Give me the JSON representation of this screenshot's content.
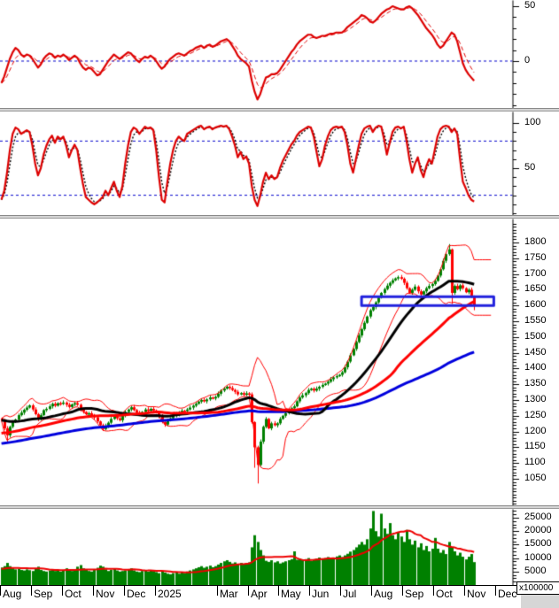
{
  "colors": {
    "up_candle": "#008000",
    "down_candle": "#ff0000",
    "bollinger_band": "#ff0000",
    "sma_fast": "#000000",
    "sma_mid": "#ff0000",
    "sma_slow": "#0000dd",
    "oscillator_line": "#dd0000",
    "oscillator_signal": "#dd0000",
    "stochastic_line": "#dd0000",
    "stochastic_signal": "#000000",
    "threshold_line": "#0000cc",
    "annotation_box": "#2222dd",
    "volume_bar": "#008000",
    "volume_ma": "#ee0000",
    "axis": "#000000"
  },
  "chart_data": {
    "type": "candlestick-multi-panel",
    "x_axis": {
      "months": [
        "Aug",
        "Sep",
        "Oct",
        "Nov",
        "Dec",
        "2025",
        null,
        "Mar",
        "Apr",
        "May",
        "Jun",
        "Jul",
        "Aug",
        "Sep",
        "Oct",
        "Nov",
        "Dec"
      ]
    },
    "panels": [
      {
        "id": "momentum-oscillator",
        "type": "line",
        "ylim": [
          -43,
          56
        ],
        "yticks": [
          {
            "value": 50,
            "label": "50"
          },
          {
            "value": 0,
            "label": "0"
          }
        ],
        "hlines": [
          0
        ],
        "values": [
          -20,
          -14,
          -6,
          2,
          8,
          12,
          10,
          6,
          4,
          6,
          5,
          2,
          -2,
          -6,
          -3,
          2,
          5,
          7,
          6,
          3,
          5,
          4,
          6,
          4,
          1,
          3,
          5,
          3,
          -2,
          -6,
          -8,
          -6,
          -7,
          -10,
          -13,
          -12,
          -8,
          -4,
          0,
          3,
          6,
          4,
          2,
          4,
          6,
          8,
          7,
          4,
          1,
          -1,
          2,
          4,
          3,
          5,
          3,
          0,
          -4,
          -7,
          -5,
          -1,
          2,
          4,
          6,
          7,
          6,
          5,
          7,
          9,
          10,
          12,
          13,
          14,
          12,
          14,
          15,
          13,
          14,
          16,
          18,
          19,
          20,
          18,
          14,
          10,
          5,
          2,
          0,
          -2,
          -5,
          -18,
          -28,
          -35,
          -30,
          -22,
          -15,
          -14,
          -12,
          -12,
          -11,
          -8,
          -4,
          0,
          4,
          8,
          11,
          15,
          18,
          20,
          22,
          24,
          24,
          22,
          21,
          22,
          23,
          23,
          24,
          25,
          25,
          26,
          26,
          26,
          28,
          31,
          33,
          35,
          37,
          39,
          42,
          41,
          39,
          36,
          35,
          37,
          40,
          43,
          45,
          47,
          48,
          50,
          49,
          48,
          47,
          47,
          49,
          50,
          48,
          45,
          42,
          38,
          34,
          30,
          27,
          24,
          20,
          15,
          12,
          14,
          18,
          22,
          26,
          24,
          18,
          8,
          -2,
          -8,
          -12,
          -15,
          -18
        ]
      },
      {
        "id": "stochastic-oscillator",
        "type": "line",
        "ylim": [
          -13,
          113
        ],
        "yticks": [
          {
            "value": 100,
            "label": "100"
          },
          {
            "value": 50,
            "label": "50"
          }
        ],
        "hlines": [
          80,
          20
        ],
        "values": [
          15,
          25,
          45,
          70,
          88,
          95,
          93,
          88,
          90,
          92,
          90,
          75,
          55,
          42,
          50,
          65,
          75,
          82,
          86,
          78,
          85,
          82,
          85,
          75,
          62,
          70,
          76,
          70,
          50,
          32,
          18,
          15,
          12,
          10,
          12,
          15,
          18,
          25,
          20,
          28,
          35,
          25,
          18,
          30,
          55,
          75,
          90,
          95,
          93,
          88,
          92,
          96,
          94,
          95,
          92,
          70,
          40,
          15,
          12,
          35,
          55,
          70,
          80,
          85,
          82,
          80,
          88,
          90,
          92,
          94,
          96,
          97,
          93,
          95,
          96,
          93,
          95,
          96,
          97,
          96,
          97,
          93,
          85,
          75,
          62,
          68,
          60,
          63,
          55,
          30,
          15,
          8,
          20,
          35,
          45,
          38,
          42,
          38,
          40,
          50,
          58,
          64,
          70,
          76,
          80,
          86,
          90,
          92,
          94,
          96,
          95,
          85,
          68,
          52,
          60,
          75,
          85,
          92,
          95,
          96,
          95,
          96,
          90,
          75,
          55,
          45,
          60,
          75,
          88,
          94,
          96,
          97,
          90,
          95,
          97,
          96,
          82,
          65,
          78,
          90,
          95,
          96,
          94,
          96,
          80,
          60,
          45,
          55,
          62,
          48,
          40,
          52,
          60,
          55,
          70,
          85,
          93,
          96,
          97,
          96,
          90,
          94,
          88,
          60,
          35,
          28,
          20,
          15,
          13
        ]
      },
      {
        "id": "price-candles",
        "type": "candlestick",
        "ylim": [
          966,
          1876
        ],
        "yticks": [
          1800,
          1750,
          1700,
          1650,
          1600,
          1550,
          1500,
          1450,
          1400,
          1350,
          1300,
          1250,
          1200,
          1150,
          1100,
          1050
        ],
        "closes": [
          1236,
          1210,
          1188,
          1215,
          1230,
          1238,
          1252,
          1260,
          1269,
          1276,
          1283,
          1270,
          1255,
          1240,
          1252,
          1268,
          1272,
          1280,
          1288,
          1282,
          1290,
          1288,
          1292,
          1285,
          1278,
          1286,
          1290,
          1285,
          1270,
          1262,
          1255,
          1258,
          1252,
          1245,
          1232,
          1220,
          1208,
          1218,
          1228,
          1240,
          1250,
          1242,
          1236,
          1250,
          1262,
          1270,
          1277,
          1268,
          1260,
          1254,
          1262,
          1270,
          1266,
          1272,
          1267,
          1260,
          1248,
          1230,
          1222,
          1235,
          1242,
          1249,
          1255,
          1261,
          1266,
          1265,
          1270,
          1276,
          1282,
          1288,
          1295,
          1300,
          1296,
          1302,
          1308,
          1305,
          1310,
          1320,
          1330,
          1336,
          1342,
          1338,
          1332,
          1326,
          1318,
          1322,
          1317,
          1321,
          1318,
          1230,
          1150,
          1094,
          1168,
          1215,
          1240,
          1210,
          1226,
          1220,
          1226,
          1240,
          1250,
          1258,
          1266,
          1274,
          1280,
          1296,
          1308,
          1315,
          1322,
          1332,
          1336,
          1330,
          1336,
          1342,
          1348,
          1352,
          1358,
          1366,
          1372,
          1376,
          1380,
          1388,
          1404,
          1422,
          1442,
          1462,
          1484,
          1505,
          1525,
          1545,
          1565,
          1585,
          1595,
          1610,
          1625,
          1640,
          1652,
          1663,
          1672,
          1680,
          1686,
          1690,
          1685,
          1672,
          1655,
          1640,
          1650,
          1660,
          1645,
          1635,
          1645,
          1655,
          1662,
          1668,
          1678,
          1695,
          1715,
          1742,
          1763,
          1778,
          1640,
          1662,
          1652,
          1664,
          1655,
          1642,
          1650,
          1628,
          1600
        ],
        "candle_overrides": {
          "2": {
            "low": 1165
          },
          "90": {
            "low": 1085
          },
          "91": {
            "low": 1035
          },
          "159": {
            "high": 1795
          },
          "160": {
            "low": 1605
          },
          "168": {
            "low": 1585
          }
        },
        "overlays": [
          {
            "name": "bollinger",
            "window": 10,
            "mult": 2,
            "width": 1,
            "extend": 6
          },
          {
            "name": "sma-slow",
            "window": 100,
            "width": 3,
            "pad_from": 1085,
            "pad_to": 1236
          },
          {
            "name": "sma-fast",
            "window": 25,
            "width": 3,
            "pad_from": 1236,
            "pad_to": 1236
          },
          {
            "name": "sma-mid",
            "window": 50,
            "width": 3,
            "pad_from": 1150,
            "pad_to": 1236
          }
        ],
        "annotation_box": {
          "from_step": 128,
          "to_step": 175,
          "price_top": 1628,
          "price_bottom": 1600
        }
      },
      {
        "id": "volume",
        "type": "bar",
        "ylim": [
          0,
          28000
        ],
        "yticks": [
          25000,
          20000,
          15000,
          10000,
          5000
        ],
        "multiplier_label": "x100000",
        "ma_window": 15,
        "values": [
          6500,
          7000,
          8200,
          7000,
          6200,
          5800,
          6000,
          5600,
          5400,
          5800,
          5500,
          5200,
          6000,
          6800,
          5600,
          5200,
          5000,
          5400,
          5800,
          5200,
          5600,
          5000,
          5400,
          6200,
          5800,
          5200,
          5600,
          6800,
          7400,
          6200,
          5600,
          5200,
          5000,
          5600,
          6400,
          7200,
          6800,
          5800,
          5200,
          5600,
          6000,
          5400,
          5000,
          5200,
          5400,
          5800,
          6200,
          5400,
          5000,
          4800,
          5200,
          5600,
          5000,
          5400,
          5200,
          4800,
          4400,
          5200,
          4600,
          4200,
          4000,
          4400,
          4800,
          4200,
          4600,
          4400,
          5000,
          5400,
          5800,
          6200,
          6600,
          7000,
          6400,
          6800,
          7200,
          6600,
          7000,
          7600,
          8200,
          8800,
          9200,
          8600,
          8000,
          8400,
          7800,
          8200,
          7600,
          8000,
          8400,
          14000,
          18500,
          16000,
          13000,
          11000,
          9000,
          8600,
          9200,
          8400,
          8800,
          8000,
          8400,
          8800,
          9200,
          9600,
          12500,
          9400,
          9800,
          9200,
          9600,
          10000,
          9000,
          9400,
          9800,
          10200,
          9600,
          10000,
          10400,
          9800,
          10200,
          10600,
          11000,
          10400,
          11000,
          11600,
          12400,
          13000,
          14000,
          15000,
          16000,
          15000,
          17000,
          21000,
          27500,
          20000,
          18000,
          26500,
          21000,
          19000,
          23000,
          18500,
          17000,
          19500,
          18000,
          16000,
          20500,
          17000,
          15000,
          16500,
          14000,
          15500,
          13000,
          14500,
          12500,
          13500,
          17500,
          13500,
          12000,
          13000,
          11500,
          16000,
          14000,
          12500,
          11000,
          12000,
          10500,
          9500,
          10500,
          11500,
          8500
        ]
      }
    ]
  }
}
